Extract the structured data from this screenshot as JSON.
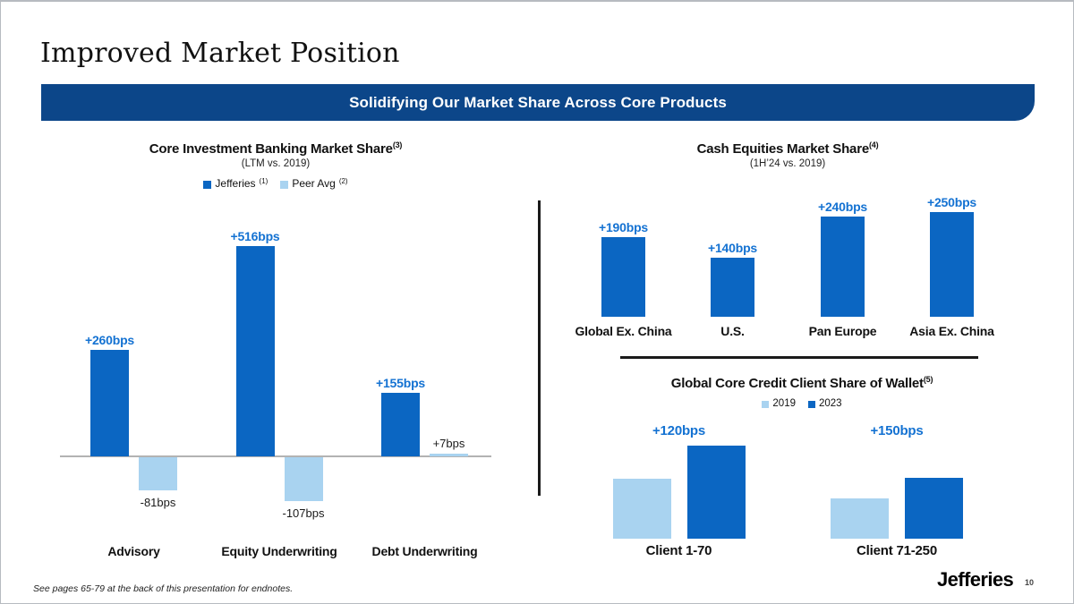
{
  "header": {
    "title": "Improved Market Position",
    "banner": "Solidifying Our Market Share Across Core Products"
  },
  "footer": {
    "endnote": "See pages 65-79 at the back of this presentation for endnotes.",
    "logo": "Jefferies",
    "page_number": "10"
  },
  "colors": {
    "banner_navy": "#0c4689",
    "bar_dark_blue": "#0b66c2",
    "bar_light_blue": "#a9d3f0",
    "value_label_blue": "#1472d2",
    "zero_line_gray": "#b3b3b3",
    "divider_black": "#1a1a1a"
  },
  "chart_data": [
    {
      "id": "core_ib",
      "type": "bar",
      "title": "Core Investment Banking Market Share",
      "title_sup": "(3)",
      "subtitle": "(LTM vs. 2019)",
      "unit": "bps",
      "legend_position": "top",
      "gridlines": false,
      "zero_line": true,
      "categories": [
        "Advisory",
        "Equity Underwriting",
        "Debt Underwriting"
      ],
      "series": [
        {
          "name": "Jefferies",
          "name_sup": "(1)",
          "color": "#0b66c2",
          "values": [
            260,
            516,
            155
          ],
          "labels": [
            "+260bps",
            "+516bps",
            "+155bps"
          ]
        },
        {
          "name": "Peer Avg",
          "name_sup": "(2)",
          "color": "#a9d3f0",
          "values": [
            -81,
            -107,
            7
          ],
          "labels": [
            "-81bps",
            "-107bps",
            "+7bps"
          ]
        }
      ]
    },
    {
      "id": "cash_equities",
      "type": "bar",
      "title": "Cash Equities Market Share",
      "title_sup": "(4)",
      "subtitle": "(1H’24 vs. 2019)",
      "unit": "bps",
      "gridlines": false,
      "categories": [
        "Global Ex. China",
        "U.S.",
        "Pan Europe",
        "Asia Ex. China"
      ],
      "values": [
        190,
        140,
        240,
        250
      ],
      "labels": [
        "+190bps",
        "+140bps",
        "+240bps",
        "+250bps"
      ],
      "color": "#0b66c2"
    },
    {
      "id": "credit_wallet",
      "type": "bar",
      "title": "Global Core Credit Client Share of Wallet",
      "title_sup": "(5)",
      "legend_position": "top",
      "gridlines": false,
      "categories": [
        "Client 1-70",
        "Client 71-250"
      ],
      "series": [
        {
          "name": "2019",
          "color": "#a9d3f0",
          "values": [
            67,
            45
          ]
        },
        {
          "name": "2023",
          "color": "#0b66c2",
          "values": [
            104,
            68
          ]
        }
      ],
      "values_note": "no value axis shown; series values are relative bar heights as drawn",
      "group_delta_labels": [
        "+120bps",
        "+150bps"
      ]
    }
  ]
}
